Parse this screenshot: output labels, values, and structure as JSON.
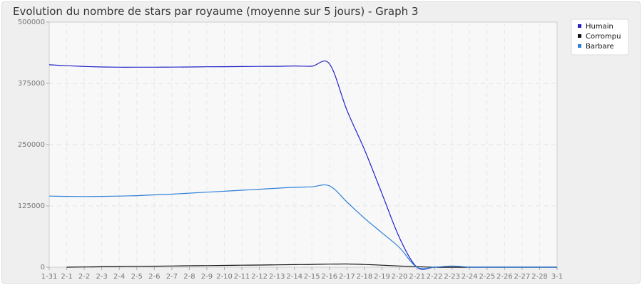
{
  "chart_data": {
    "type": "line",
    "title": "Evolution du nombre de stars par royaume (moyenne sur 5 jours) - Graph 3",
    "categories": [
      "1-31",
      "2-1",
      "2-2",
      "2-3",
      "2-4",
      "2-5",
      "2-6",
      "2-7",
      "2-8",
      "2-9",
      "2-10",
      "2-11",
      "2-12",
      "2-13",
      "2-14",
      "2-15",
      "2-16",
      "2-17",
      "2-18",
      "2-19",
      "2-20",
      "2-21",
      "2-22",
      "2-23",
      "2-24",
      "2-25",
      "2-26",
      "2-27",
      "2-28",
      "3-1"
    ],
    "ylim": [
      0,
      500000
    ],
    "yticks": [
      "0",
      "125000",
      "250000",
      "375000",
      "500000"
    ],
    "grid": true,
    "legend_position": "top-right",
    "series": [
      {
        "name": "Humain",
        "color": "#2020c8",
        "values": [
          413000,
          411000,
          409500,
          408500,
          408000,
          408000,
          408000,
          408200,
          408500,
          408800,
          409000,
          409300,
          409600,
          409800,
          410500,
          410000,
          415000,
          320000,
          240000,
          150000,
          60000,
          0,
          0,
          0,
          0,
          0,
          0,
          0,
          0,
          0
        ]
      },
      {
        "name": "Corrompu",
        "color": "#111111",
        "values": [
          null,
          0,
          500,
          900,
          1300,
          1700,
          2100,
          2500,
          2900,
          3200,
          3600,
          4000,
          4400,
          4800,
          5200,
          5600,
          6200,
          6500,
          5500,
          4000,
          2500,
          1000,
          0,
          0,
          0,
          0,
          0,
          0,
          0,
          0
        ]
      },
      {
        "name": "Barbare",
        "color": "#2f7fd8",
        "values": [
          145000,
          144500,
          144200,
          144500,
          145000,
          146000,
          147500,
          149000,
          151000,
          153000,
          155000,
          157000,
          159000,
          161000,
          163000,
          164000,
          166000,
          133000,
          100000,
          70000,
          40000,
          0,
          0,
          2500,
          0,
          0,
          0,
          0,
          0,
          0
        ]
      }
    ]
  }
}
